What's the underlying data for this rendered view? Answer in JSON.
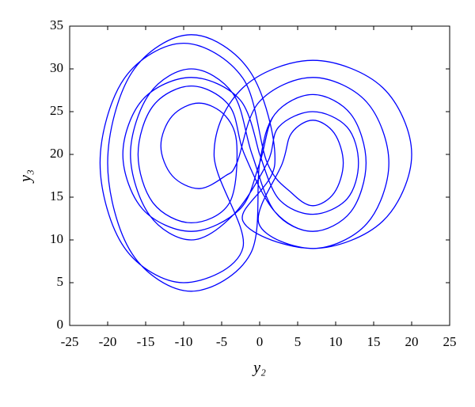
{
  "chart_data": {
    "type": "line",
    "x_label": "y₂",
    "y_label": "y₃",
    "xlim": [
      -25,
      25
    ],
    "ylim": [
      0,
      35
    ],
    "xticks": [
      -25,
      -20,
      -15,
      -10,
      -5,
      0,
      5,
      10,
      15,
      20,
      25
    ],
    "yticks": [
      0,
      5,
      10,
      15,
      20,
      25,
      30,
      35
    ],
    "grid": false,
    "series": [
      {
        "color": "#0000ff",
        "x": [
          0,
          -2.6,
          -9,
          -15.4,
          -18,
          -15.4,
          -9,
          -2.6,
          0,
          2,
          7,
          12,
          14,
          12,
          7,
          2,
          -2,
          -4,
          -9,
          -14,
          -16,
          -14,
          -9,
          -4,
          -3,
          -4.5,
          -8,
          -11.5,
          -13,
          -11.5,
          -8,
          -4.5,
          -3,
          -0.1,
          7,
          14.1,
          17,
          14.1,
          7,
          -0.1,
          3,
          4.2,
          7,
          9.8,
          11,
          9.8,
          7,
          4.2,
          1,
          -2.2,
          -10,
          -17.8,
          -21,
          -17.8,
          -10,
          -2.2,
          -6,
          -2.2,
          7,
          16.2,
          20,
          16.2,
          7,
          -2.2,
          2,
          -1.2,
          -9,
          -16.8,
          -20,
          -16.8,
          -9,
          -1.2,
          0,
          2,
          7,
          12,
          14,
          12,
          7,
          2,
          -1,
          -3.5,
          -9,
          -14.5,
          -17,
          -14.5,
          -9,
          -3.5,
          1,
          2.5,
          7,
          11.5,
          13,
          11.5,
          7,
          2.5,
          0
        ],
        "y": [
          20,
          26.4,
          29,
          26.4,
          20,
          13.6,
          11,
          13.6,
          19,
          24.7,
          27,
          24.7,
          19,
          13.3,
          11,
          13.3,
          20,
          25.7,
          28,
          25.7,
          20,
          14.3,
          12,
          14.3,
          21,
          24.5,
          26,
          24.5,
          21,
          17.5,
          16,
          17.5,
          19,
          26.1,
          29,
          26.1,
          19,
          11.9,
          9,
          11.9,
          19,
          22.5,
          24,
          22.5,
          19,
          15.5,
          14,
          15.5,
          19,
          28.9,
          33,
          28.9,
          19,
          9.1,
          5,
          9.1,
          20,
          27.8,
          31,
          27.8,
          20,
          12.2,
          9,
          12.2,
          19,
          29.6,
          34,
          29.6,
          19,
          8.4,
          4,
          8.4,
          19,
          24.7,
          27,
          24.7,
          19,
          13.3,
          11,
          13.3,
          20,
          27.1,
          30,
          27.1,
          20,
          12.9,
          10,
          12.9,
          19,
          23.2,
          25,
          23.2,
          19,
          14.8,
          13,
          14.8,
          20
        ]
      }
    ]
  }
}
